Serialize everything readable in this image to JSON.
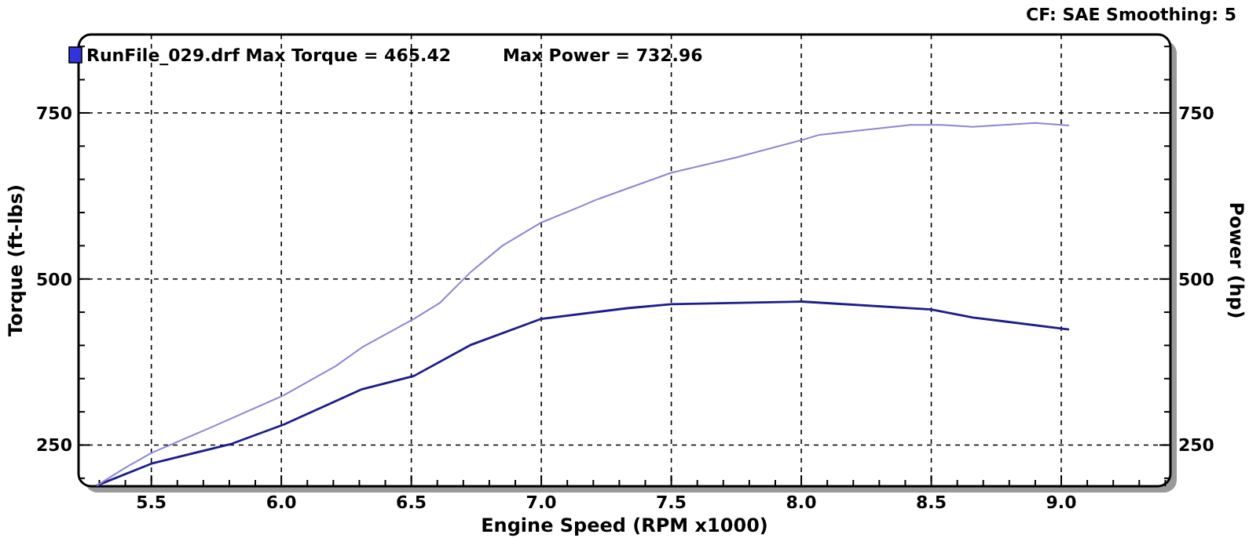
{
  "chart_data": {
    "type": "line",
    "xlabel": "Engine Speed (RPM x1000)",
    "ylabel": "Torque (ft-lbs)",
    "y2label": "Power (hp)",
    "annotations": [
      "RunFile_029.drf Max Torque = 465.42",
      "Max Power = 732.96",
      "CF: SAE  Smoothing: 5"
    ],
    "xlim": [
      5.22,
      9.42
    ],
    "ylim": [
      188,
      868
    ],
    "y2lim": [
      188,
      868
    ],
    "xticks": [
      {
        "value": 5.3,
        "label": null
      },
      {
        "value": 5.4,
        "label": null
      },
      {
        "value": 5.5,
        "label": "5.5"
      },
      {
        "value": 5.6,
        "label": null
      },
      {
        "value": 5.7,
        "label": null
      },
      {
        "value": 5.8,
        "label": null
      },
      {
        "value": 5.9,
        "label": null
      },
      {
        "value": 6.0,
        "label": "6.0"
      },
      {
        "value": 6.1,
        "label": null
      },
      {
        "value": 6.2,
        "label": null
      },
      {
        "value": 6.3,
        "label": null
      },
      {
        "value": 6.4,
        "label": null
      },
      {
        "value": 6.5,
        "label": "6.5"
      },
      {
        "value": 6.6,
        "label": null
      },
      {
        "value": 6.7,
        "label": null
      },
      {
        "value": 6.8,
        "label": null
      },
      {
        "value": 6.9,
        "label": null
      },
      {
        "value": 7.0,
        "label": "7.0"
      },
      {
        "value": 7.1,
        "label": null
      },
      {
        "value": 7.2,
        "label": null
      },
      {
        "value": 7.3,
        "label": null
      },
      {
        "value": 7.4,
        "label": null
      },
      {
        "value": 7.5,
        "label": "7.5"
      },
      {
        "value": 7.6,
        "label": null
      },
      {
        "value": 7.7,
        "label": null
      },
      {
        "value": 7.8,
        "label": null
      },
      {
        "value": 7.9,
        "label": null
      },
      {
        "value": 8.0,
        "label": "8.0"
      },
      {
        "value": 8.1,
        "label": null
      },
      {
        "value": 8.2,
        "label": null
      },
      {
        "value": 8.3,
        "label": null
      },
      {
        "value": 8.4,
        "label": null
      },
      {
        "value": 8.5,
        "label": "8.5"
      },
      {
        "value": 8.6,
        "label": null
      },
      {
        "value": 8.7,
        "label": null
      },
      {
        "value": 8.8,
        "label": null
      },
      {
        "value": 8.9,
        "label": null
      },
      {
        "value": 9.0,
        "label": "9.0"
      },
      {
        "value": 9.1,
        "label": null
      },
      {
        "value": 9.2,
        "label": null
      },
      {
        "value": 9.3,
        "label": null
      },
      {
        "value": 9.4,
        "label": null
      }
    ],
    "yticks": [
      {
        "value": 200,
        "label": null
      },
      250,
      {
        "value": 300,
        "label": null
      },
      {
        "value": 350,
        "label": null
      },
      {
        "value": 400,
        "label": null
      },
      {
        "value": 450,
        "label": null
      },
      500,
      {
        "value": 550,
        "label": null
      },
      {
        "value": 600,
        "label": null
      },
      {
        "value": 650,
        "label": null
      },
      {
        "value": 700,
        "label": null
      },
      750,
      {
        "value": 800,
        "label": null
      },
      {
        "value": 850,
        "label": null
      }
    ],
    "y2ticks": [
      {
        "value": 200,
        "label": null
      },
      250,
      {
        "value": 300,
        "label": null
      },
      {
        "value": 350,
        "label": null
      },
      {
        "value": 400,
        "label": null
      },
      {
        "value": 450,
        "label": null
      },
      500,
      {
        "value": 550,
        "label": null
      },
      {
        "value": 600,
        "label": null
      },
      {
        "value": 650,
        "label": null
      },
      {
        "value": 700,
        "label": null
      },
      750,
      {
        "value": 800,
        "label": null
      },
      {
        "value": 850,
        "label": null
      }
    ],
    "grid": true,
    "series": [
      {
        "color": "#1c1c8e",
        "x": [
          5.29,
          5.5,
          5.81,
          6.01,
          6.31,
          6.51,
          6.73,
          7.0,
          7.33,
          7.5,
          8.0,
          8.5,
          8.66,
          9.03
        ],
        "values": [
          189,
          222,
          252,
          281,
          334,
          354,
          401,
          440,
          456,
          462,
          466,
          454,
          442,
          424
        ]
      },
      {
        "color": "#8a86d4",
        "axis": "y2",
        "x": [
          5.29,
          5.4,
          5.5,
          5.72,
          6.01,
          6.21,
          6.31,
          6.51,
          6.61,
          6.73,
          6.85,
          7.0,
          7.15,
          7.21,
          7.33,
          7.5,
          7.75,
          8.0,
          8.07,
          8.42,
          8.54,
          8.66,
          8.9,
          9.03
        ],
        "values": [
          189,
          216,
          238,
          275,
          325,
          369,
          397,
          440,
          464,
          511,
          550,
          585,
          609,
          619,
          636,
          660,
          683,
          709,
          717,
          732,
          732,
          729,
          735,
          731
        ]
      }
    ]
  }
}
